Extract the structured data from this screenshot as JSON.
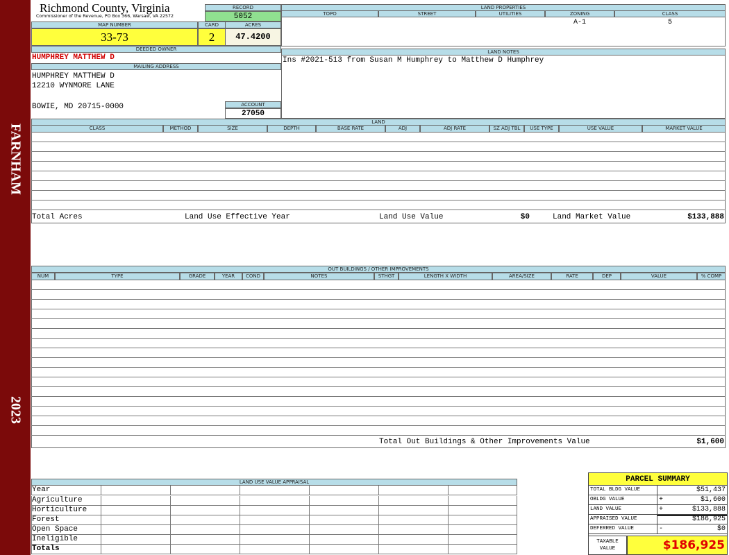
{
  "sidebar": {
    "district": "FARNHAM",
    "year": "2023"
  },
  "header": {
    "title": "Richmond County, Virginia",
    "subtitle": "Commissioner of the Revenue, PO Box 366, Warsaw, VA 22572"
  },
  "record": {
    "label": "RECORD",
    "value": "5052"
  },
  "map_number": {
    "label": "MAP NUMBER",
    "value": "33-73"
  },
  "card": {
    "label": "CARD",
    "value": "2"
  },
  "acres": {
    "label": "ACRES",
    "value": "47.4200"
  },
  "deeded_owner": {
    "label": "DEEDED OWNER",
    "value": "HUMPHREY MATTHEW D"
  },
  "mailing_address": {
    "label": "MAILING ADDRESS",
    "lines": [
      "HUMPHREY MATTHEW D",
      "12210 WYNMORE LANE",
      "BOWIE, MD 20715-0000"
    ]
  },
  "account": {
    "label": "ACCOUNT",
    "value": "27050"
  },
  "land_properties": {
    "title": "LAND PROPERTIES",
    "columns": [
      "TOPO",
      "STREET",
      "UTILITIES",
      "ZONING",
      "CLASS"
    ],
    "zoning": "A-1",
    "class": "5"
  },
  "land_notes": {
    "title": "LAND NOTES",
    "text": "Ins #2021-513 from Susan M Humphrey to Matthew D Humphrey"
  },
  "land": {
    "title": "LAND",
    "columns": [
      "CLASS",
      "METHOD",
      "SIZE",
      "DEPTH",
      "BASE RATE",
      "ADJ",
      "ADJ RATE",
      "SZ ADJ TBL",
      "USE TYPE",
      "USE VALUE",
      "MARKET VALUE"
    ],
    "totals": {
      "total_acres": "Total Acres",
      "effective_year": "Land Use Effective Year",
      "use_value_label": "Land Use Value",
      "use_value": "$0",
      "market_value_label": "Land Market Value",
      "market_value": "$133,888"
    }
  },
  "outbuildings": {
    "title": "OUT BUILDINGS / OTHER IMPROVEMENTS",
    "columns": [
      "NUM",
      "TYPE",
      "GRADE",
      "YEAR",
      "COND",
      "NOTES",
      "STHGT",
      "LENGTH X WIDTH",
      "AREA/SIZE",
      "RATE",
      "DEP",
      "VALUE",
      "% COMP"
    ],
    "total_label": "Total Out Buildings & Other Improvements Value",
    "total_value": "$1,600"
  },
  "land_use_appraisal": {
    "title": "LAND USE VALUE APPRAISAL",
    "rows": [
      "Year",
      "Agriculture",
      "Horticulture",
      "Forest",
      "Open Space",
      "Ineligible",
      "Totals"
    ]
  },
  "parcel_summary": {
    "title": "PARCEL SUMMARY",
    "rows": [
      {
        "label": "TOTAL BLDG VALUE",
        "value": "$51,437"
      },
      {
        "label": "OBLDG VALUE",
        "sign": "+",
        "value": "$1,600"
      },
      {
        "label": "LAND VALUE",
        "sign": "+",
        "value": "$133,888"
      },
      {
        "label": "APPRAISED VALUE",
        "value": "$186,925"
      },
      {
        "label": "DEFERRED VALUE",
        "sign": "-",
        "value": "$0"
      }
    ],
    "taxable_label": "TAXABLE VALUE",
    "taxable_value": "$186,925"
  }
}
